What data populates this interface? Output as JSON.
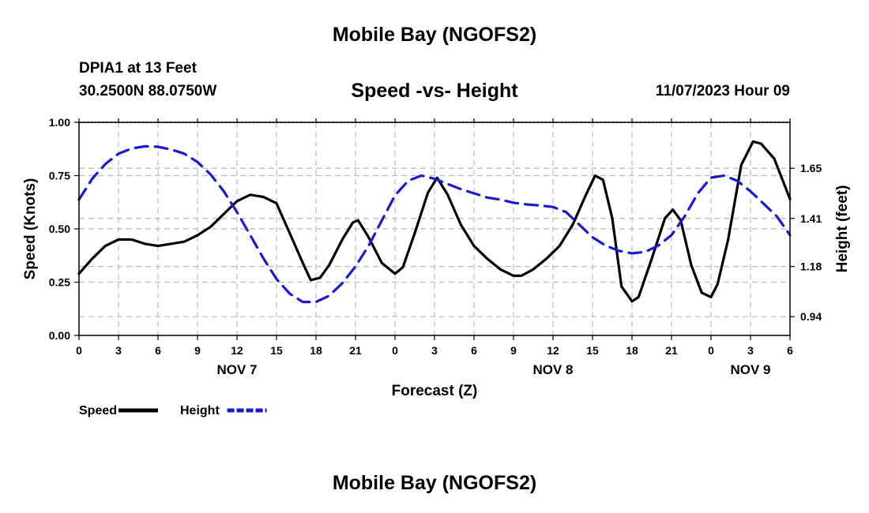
{
  "header": {
    "title": "Mobile Bay (NGOFS2)",
    "station": "DPIA1 at 13 Feet",
    "coords": "30.2500N  88.0750W",
    "subtitle": "Speed -vs- Height",
    "datetime": "11/07/2023 Hour 09",
    "second_title": "Mobile Bay (NGOFS2)"
  },
  "chart_data": {
    "type": "line",
    "title": "Speed -vs- Height",
    "xlabel": "Forecast (Z)",
    "ylabel": "Speed (Knots)",
    "y2label": "Height (feet)",
    "xlim": [
      0,
      54
    ],
    "ylim": [
      0,
      1
    ],
    "y2lim": [
      0.85,
      1.87
    ],
    "x_ticks": [
      0,
      3,
      6,
      9,
      12,
      15,
      18,
      21,
      24,
      27,
      30,
      33,
      36,
      39,
      42,
      45,
      48,
      51,
      54
    ],
    "x_tick_labels": [
      "0",
      "3",
      "6",
      "9",
      "12",
      "15",
      "18",
      "21",
      "0",
      "3",
      "6",
      "9",
      "12",
      "15",
      "18",
      "21",
      "0",
      "3",
      "6"
    ],
    "date_labels": [
      {
        "x": 12,
        "label": "NOV 7"
      },
      {
        "x": 36,
        "label": "NOV 8"
      },
      {
        "x": 51,
        "label": "NOV 9"
      }
    ],
    "y_ticks": [
      0.0,
      0.25,
      0.5,
      0.75,
      1.0
    ],
    "y_tick_labels": [
      "0.00",
      "0.25",
      "0.50",
      "0.75",
      "1.00"
    ],
    "y2_ticks": [
      0.94,
      1.18,
      1.41,
      1.65
    ],
    "y2_tick_labels": [
      "0.94",
      "1.18",
      "1.41",
      "1.65"
    ],
    "grid": true,
    "series": [
      {
        "name": "Speed",
        "axis": "left",
        "color": "#000000",
        "dash": "solid",
        "points": [
          [
            0,
            0.29
          ],
          [
            1,
            0.36
          ],
          [
            2,
            0.42
          ],
          [
            3,
            0.45
          ],
          [
            4,
            0.45
          ],
          [
            5,
            0.43
          ],
          [
            6,
            0.42
          ],
          [
            7,
            0.43
          ],
          [
            8,
            0.44
          ],
          [
            9,
            0.47
          ],
          [
            10,
            0.51
          ],
          [
            11,
            0.57
          ],
          [
            12,
            0.63
          ],
          [
            13,
            0.66
          ],
          [
            14,
            0.65
          ],
          [
            15,
            0.62
          ],
          [
            16,
            0.48
          ],
          [
            17,
            0.34
          ],
          [
            17.6,
            0.26
          ],
          [
            18.3,
            0.27
          ],
          [
            19,
            0.33
          ],
          [
            20,
            0.45
          ],
          [
            20.8,
            0.53
          ],
          [
            21.2,
            0.54
          ],
          [
            22,
            0.46
          ],
          [
            23,
            0.34
          ],
          [
            24,
            0.29
          ],
          [
            24.6,
            0.32
          ],
          [
            25.5,
            0.48
          ],
          [
            26.5,
            0.67
          ],
          [
            27.2,
            0.74
          ],
          [
            28,
            0.66
          ],
          [
            29,
            0.52
          ],
          [
            30,
            0.42
          ],
          [
            31,
            0.36
          ],
          [
            32,
            0.31
          ],
          [
            33,
            0.28
          ],
          [
            33.6,
            0.28
          ],
          [
            34.5,
            0.31
          ],
          [
            35.5,
            0.36
          ],
          [
            36.5,
            0.42
          ],
          [
            37.5,
            0.52
          ],
          [
            38.5,
            0.66
          ],
          [
            39.2,
            0.75
          ],
          [
            39.8,
            0.73
          ],
          [
            40.5,
            0.55
          ],
          [
            41.2,
            0.23
          ],
          [
            42,
            0.16
          ],
          [
            42.5,
            0.18
          ],
          [
            43.5,
            0.36
          ],
          [
            44.5,
            0.55
          ],
          [
            45.1,
            0.59
          ],
          [
            45.7,
            0.54
          ],
          [
            46.5,
            0.33
          ],
          [
            47.3,
            0.2
          ],
          [
            48,
            0.18
          ],
          [
            48.5,
            0.24
          ],
          [
            49.3,
            0.45
          ],
          [
            50.3,
            0.8
          ],
          [
            51.2,
            0.91
          ],
          [
            51.8,
            0.9
          ],
          [
            52.8,
            0.83
          ],
          [
            54,
            0.64
          ]
        ]
      },
      {
        "name": "Height",
        "axis": "right",
        "color": "#1a1ad0",
        "dash": "dashed",
        "points": [
          [
            0,
            1.5
          ],
          [
            1,
            1.6
          ],
          [
            2,
            1.67
          ],
          [
            3,
            1.72
          ],
          [
            4,
            1.745
          ],
          [
            5,
            1.755
          ],
          [
            6,
            1.753
          ],
          [
            7,
            1.74
          ],
          [
            8,
            1.72
          ],
          [
            9,
            1.68
          ],
          [
            10,
            1.62
          ],
          [
            11,
            1.54
          ],
          [
            12,
            1.44
          ],
          [
            13,
            1.33
          ],
          [
            14,
            1.22
          ],
          [
            15,
            1.12
          ],
          [
            16,
            1.05
          ],
          [
            17,
            1.01
          ],
          [
            18,
            1.01
          ],
          [
            19,
            1.04
          ],
          [
            20,
            1.1
          ],
          [
            21,
            1.18
          ],
          [
            22,
            1.28
          ],
          [
            23,
            1.4
          ],
          [
            24,
            1.52
          ],
          [
            25,
            1.59
          ],
          [
            26,
            1.615
          ],
          [
            27,
            1.6
          ],
          [
            28,
            1.575
          ],
          [
            29,
            1.55
          ],
          [
            30,
            1.53
          ],
          [
            31,
            1.51
          ],
          [
            32,
            1.5
          ],
          [
            33,
            1.485
          ],
          [
            34,
            1.477
          ],
          [
            35,
            1.472
          ],
          [
            36,
            1.465
          ],
          [
            37,
            1.44
          ],
          [
            38,
            1.38
          ],
          [
            39,
            1.32
          ],
          [
            40,
            1.28
          ],
          [
            41,
            1.255
          ],
          [
            42,
            1.243
          ],
          [
            43,
            1.25
          ],
          [
            44,
            1.28
          ],
          [
            45,
            1.33
          ],
          [
            46,
            1.42
          ],
          [
            47,
            1.53
          ],
          [
            48,
            1.605
          ],
          [
            49,
            1.615
          ],
          [
            50,
            1.59
          ],
          [
            51,
            1.54
          ],
          [
            52,
            1.48
          ],
          [
            53,
            1.42
          ],
          [
            54,
            1.33
          ]
        ]
      }
    ],
    "legend": [
      {
        "label": "Speed",
        "color": "#000000",
        "dash": "solid"
      },
      {
        "label": "Height",
        "color": "#1a1ad0",
        "dash": "dashed"
      }
    ]
  }
}
